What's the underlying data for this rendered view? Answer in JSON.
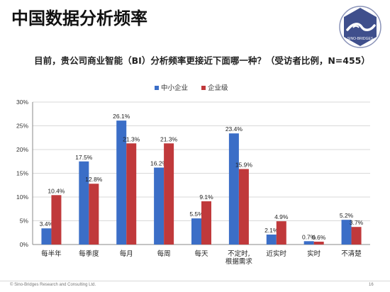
{
  "slide": {
    "title": "中国数据分析频率",
    "question": "目前，贵公司商业智能（BI）分析频率更接近下面哪一种？（受访者比例，N=455）",
    "footer": "© Sino-Bridges Research and Consulting Ltd.",
    "page_number": "16"
  },
  "logo": {
    "name": "sino-bridges-logo",
    "text": "SINO-BRIDGES",
    "colors": [
      "#3f4f8c",
      "#ffffff"
    ]
  },
  "chart_data": {
    "type": "bar",
    "title": "目前，贵公司商业智能（BI）分析频率更接近下面哪一种？（受访者比例，N=455）",
    "categories": [
      "每半年",
      "每季度",
      "每月",
      "每周",
      "每天",
      "不定时,\n根据需求",
      "近实时",
      "实时",
      "不清楚"
    ],
    "series": [
      {
        "name": "中小企业",
        "color": "#3b6ec7",
        "values": [
          3.4,
          17.5,
          26.1,
          16.2,
          5.5,
          23.4,
          2.1,
          0.7,
          5.2
        ]
      },
      {
        "name": "企业级",
        "color": "#c0393b",
        "values": [
          10.4,
          12.8,
          21.3,
          21.3,
          9.1,
          15.9,
          4.9,
          0.6,
          3.7
        ]
      }
    ],
    "value_labels": [
      [
        "3.4%",
        "17.5%",
        "26.1%",
        "16.2%",
        "5.5%",
        "23.4%",
        "2.1%",
        "0.7%",
        "5.2%"
      ],
      [
        "10.4%",
        "12.8%",
        "21.3%",
        "21.3%",
        "9.1%",
        "15.9%",
        "4.9%",
        "0.6%",
        "3.7%"
      ]
    ],
    "y_ticks": [
      "0%",
      "5%",
      "10%",
      "15%",
      "20%",
      "25%",
      "30%"
    ],
    "ylim": [
      0,
      30
    ],
    "grid": true,
    "legend_position": "top-center"
  }
}
